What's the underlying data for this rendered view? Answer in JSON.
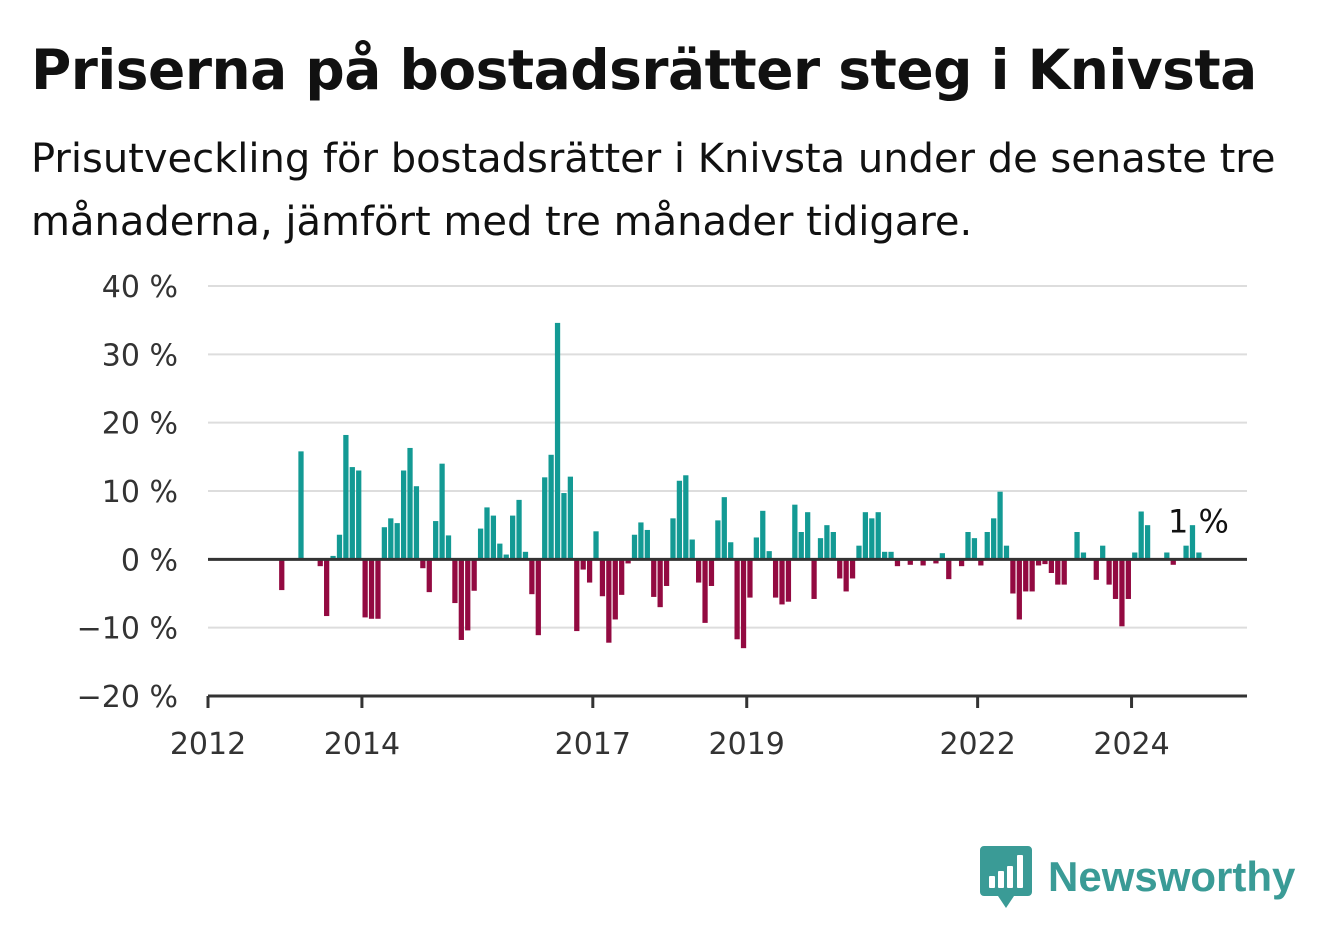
{
  "header": {
    "title": "Priserna på bostadsrätter steg i Knivsta",
    "subtitle": "Prisutveckling för bostadsrätter i Knivsta under de senaste tre månaderna, jämfört med tre månader tidigare."
  },
  "brand": {
    "name": "Newsworthy",
    "icon": "newsworthy-logo-icon"
  },
  "colors": {
    "positive": "#139a94",
    "negative": "#930a41",
    "grid": "#dddddd",
    "axis": "#333333"
  },
  "chart_data": {
    "type": "bar",
    "title": "",
    "xlabel": "",
    "ylabel": "",
    "ylim": [
      -20,
      40
    ],
    "xlim": [
      2012.0,
      2025.5
    ],
    "grid": true,
    "yticks": [
      -20,
      -10,
      0,
      10,
      20,
      30,
      40
    ],
    "ytick_labels": [
      "−20 %",
      "−10 %",
      "0 %",
      "10 %",
      "20 %",
      "30 %",
      "40 %"
    ],
    "xticks": [
      2012,
      2014,
      2017,
      2019,
      2022,
      2024
    ],
    "xtick_labels": [
      "2012",
      "2014",
      "2017",
      "2019",
      "2022",
      "2024"
    ],
    "end_label": "1 %",
    "series": [
      {
        "start": [
          2012,
          12
        ],
        "values": [
          -4.5,
          0,
          0,
          15.8,
          0,
          0,
          -1,
          -8.3,
          0.5,
          3.6,
          18.2,
          13.5,
          13,
          -8.5,
          -8.7,
          -8.7,
          4.7,
          6,
          5.3,
          13,
          16.3,
          10.7,
          -1.3,
          -4.8,
          5.6,
          14,
          3.5,
          -6.4,
          -11.8,
          -10.4,
          -4.6,
          4.5,
          7.6,
          6.4,
          2.3,
          0.7,
          6.4,
          8.7,
          1.1,
          -5.1,
          -11.1,
          12,
          15.3,
          34.6,
          9.7,
          12.1,
          -10.5,
          -1.5,
          -3.4,
          4.1,
          -5.4,
          -12.2,
          -8.8,
          -5.2,
          -0.6,
          3.6,
          5.4,
          4.3,
          -5.5,
          -7,
          -3.9,
          6,
          11.5,
          12.3,
          2.9,
          -3.4,
          -9.3,
          -3.9,
          5.7,
          9.1,
          2.5,
          -11.7,
          -13,
          -5.6,
          3.2,
          7.1,
          1.2,
          -5.6,
          -6.6,
          -6.2,
          8,
          4,
          6.9,
          -5.8,
          3.1,
          5,
          4,
          -2.8,
          -4.7,
          -2.8,
          2,
          6.9,
          6,
          6.9,
          1.1,
          1.1,
          -1,
          0,
          -0.8,
          0,
          -0.9,
          0,
          -0.6,
          0.9,
          -2.9,
          0,
          -1,
          4,
          3.1,
          -0.9,
          4,
          6,
          9.9,
          2,
          -5,
          -8.8,
          -4.7,
          -4.7,
          -0.9,
          -0.7,
          -2,
          -3.7,
          -3.7,
          0,
          4,
          1,
          0,
          -3,
          2,
          -3.7,
          -5.8,
          -9.8,
          -5.8,
          1,
          7,
          5,
          0,
          0,
          1,
          -0.8,
          0,
          2,
          5,
          1
        ]
      }
    ]
  }
}
